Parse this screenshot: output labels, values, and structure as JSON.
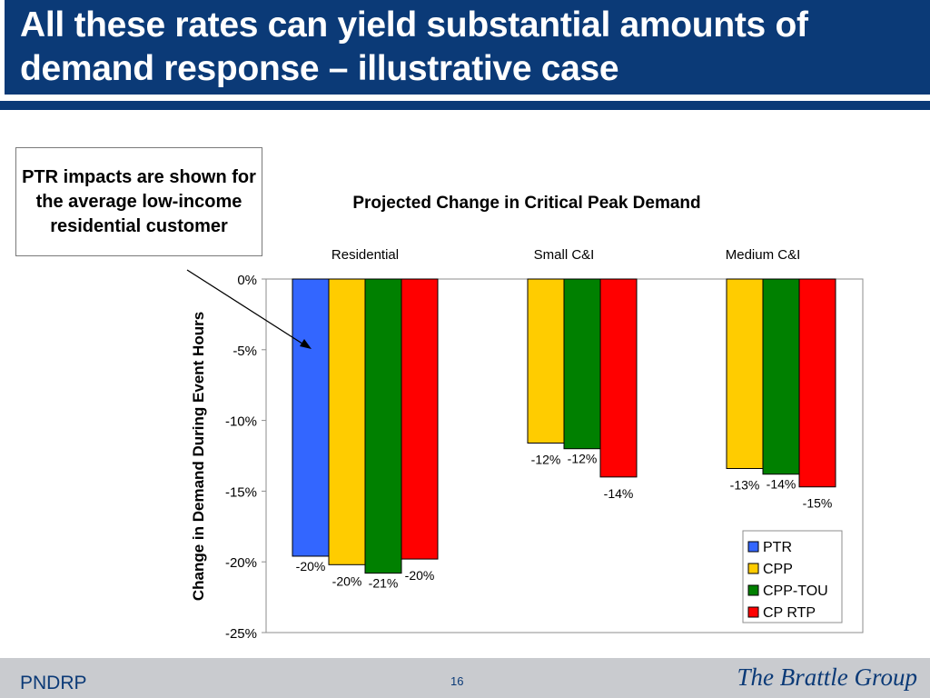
{
  "slide": {
    "title": "All these rates can yield substantial amounts of demand response – illustrative case",
    "callout": "PTR impacts are shown for the average low-income residential customer",
    "footer_left": "PNDRP",
    "page_number": "16",
    "footer_right": "The Brattle Group"
  },
  "colors": {
    "title_bar": "#0b3a77",
    "PTR": "#3366ff",
    "CPP": "#ffcc00",
    "CPP-TOU": "#008000",
    "CP RTP": "#ff0000"
  },
  "chart_data": {
    "type": "bar",
    "title": "Projected Change in Critical Peak Demand",
    "ylabel": "Change in Demand During Event Hours",
    "xlabel": "",
    "categories": [
      "Residential",
      "Small C&I",
      "Medium C&I"
    ],
    "ylim": [
      -25,
      0
    ],
    "yticks": [
      "0%",
      "-5%",
      "-10%",
      "-15%",
      "-20%",
      "-25%"
    ],
    "ytick_values": [
      0,
      -5,
      -10,
      -15,
      -20,
      -25
    ],
    "grid": false,
    "legend": "bottom-right",
    "series": [
      {
        "name": "PTR",
        "values": [
          -19.6,
          null,
          null
        ],
        "labels": [
          "-20%",
          "",
          ""
        ]
      },
      {
        "name": "CPP",
        "values": [
          -20.2,
          -11.6,
          -13.4
        ],
        "labels": [
          "-20%",
          "-12%",
          "-13%"
        ]
      },
      {
        "name": "CPP-TOU",
        "values": [
          -20.8,
          -12.0,
          -13.8
        ],
        "labels": [
          "-21%",
          "-12%",
          "-14%"
        ]
      },
      {
        "name": "CP RTP",
        "values": [
          -19.8,
          -14.0,
          -14.7
        ],
        "labels": [
          "-20%",
          "-14%",
          "-15%"
        ]
      }
    ]
  }
}
